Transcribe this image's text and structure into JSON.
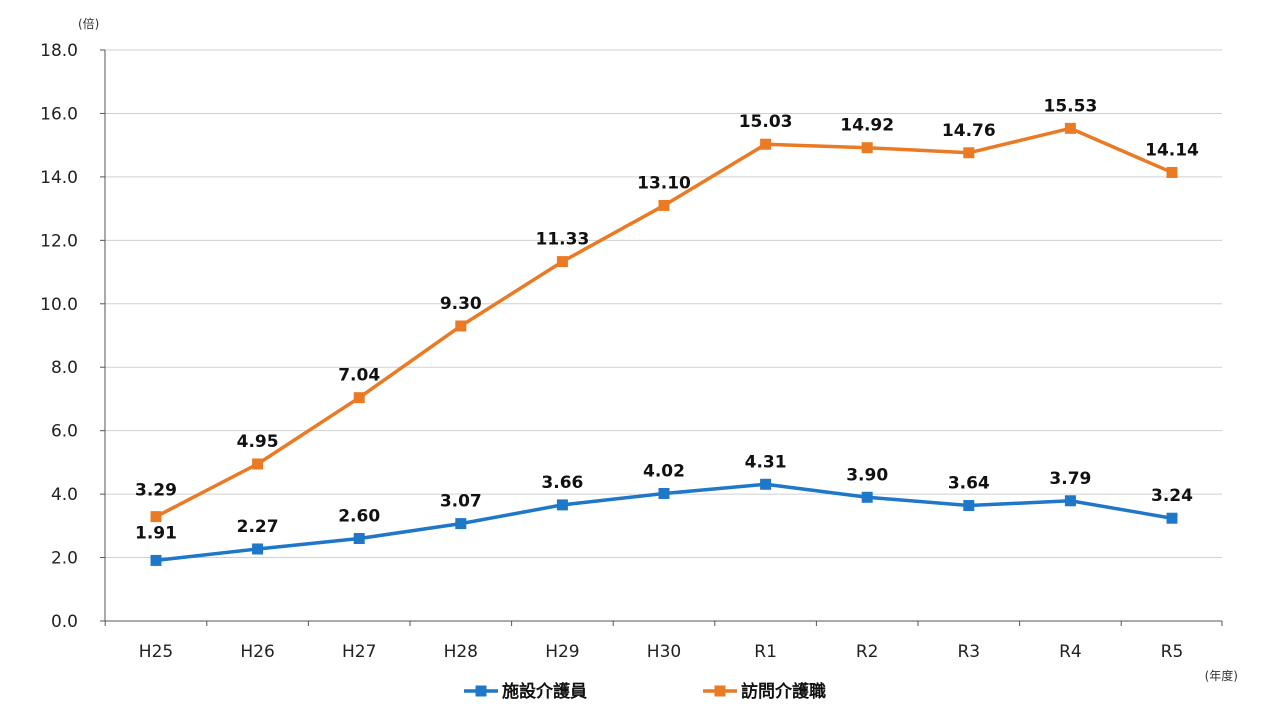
{
  "chart_data": {
    "type": "line",
    "title": "",
    "xlabel": "(年度)",
    "ylabel": "(倍)",
    "categories": [
      "H25",
      "H26",
      "H27",
      "H28",
      "H29",
      "H30",
      "R1",
      "R2",
      "R3",
      "R4",
      "R5"
    ],
    "y_ticks": [
      "0.0",
      "2.0",
      "4.0",
      "6.0",
      "8.0",
      "10.0",
      "12.0",
      "14.0",
      "16.0",
      "18.0"
    ],
    "ylim": [
      0,
      18
    ],
    "grid": true,
    "legend_position": "bottom-center",
    "series": [
      {
        "name": "施設介護員",
        "color": "#1f77c8",
        "values": [
          1.91,
          2.27,
          2.6,
          3.07,
          3.66,
          4.02,
          4.31,
          3.9,
          3.64,
          3.79,
          3.24
        ],
        "labels": [
          "1.91",
          "2.27",
          "2.60",
          "3.07",
          "3.66",
          "4.02",
          "4.31",
          "3.90",
          "3.64",
          "3.79",
          "3.24"
        ]
      },
      {
        "name": "訪問介護職",
        "color": "#ea7a24",
        "values": [
          3.29,
          4.95,
          7.04,
          9.3,
          11.33,
          13.1,
          15.03,
          14.92,
          14.76,
          15.53,
          14.14
        ],
        "labels": [
          "3.29",
          "4.95",
          "7.04",
          "9.30",
          "11.33",
          "13.10",
          "15.03",
          "14.92",
          "14.76",
          "15.53",
          "14.14"
        ]
      }
    ]
  }
}
